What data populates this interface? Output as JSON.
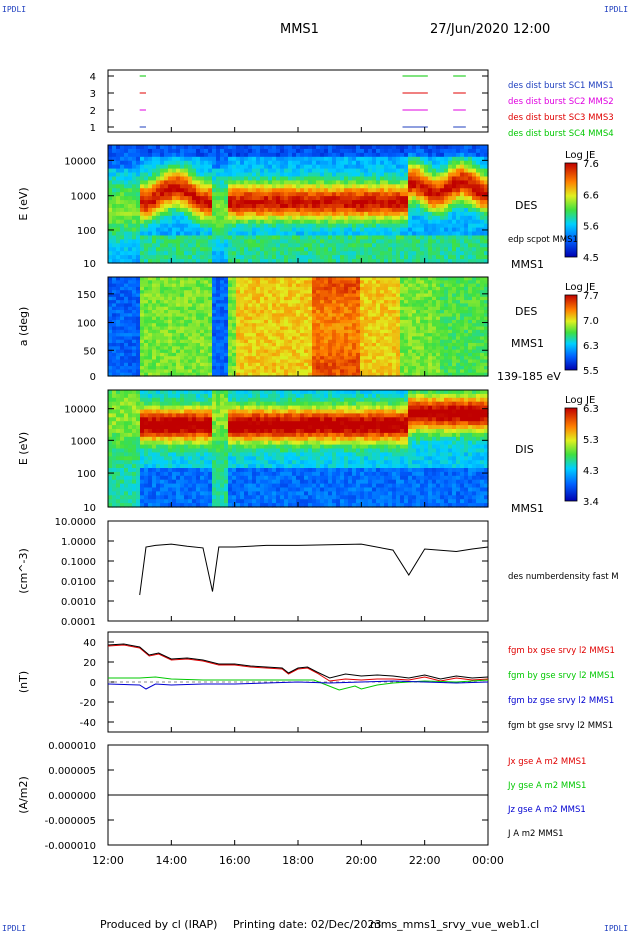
{
  "corner_labels": [
    "IPDLI",
    "IPDLI",
    "IPDLI",
    "IPDLI"
  ],
  "header": {
    "spacecraft": "MMS1",
    "datetime": "27/Jun/2020 12:00"
  },
  "footer": {
    "produced_by": "Produced by cl (IRAP)",
    "printing_date": "Printing date: 02/Dec/2023",
    "product": "mms_mms1_srvy_vue_web1.cl"
  },
  "colors": {
    "red": "#e00000",
    "green": "#00c800",
    "blue": "#0000d0",
    "magenta": "#e000e0",
    "black": "#000000",
    "legend_blue": "#1f3fbf"
  },
  "chart_data": [
    {
      "type": "scatter",
      "panel": "burst-availability",
      "yticks": [
        "4",
        "3",
        "2",
        "1"
      ],
      "legend": [
        {
          "name": "des dist burst SC1 MMS1",
          "color": "#1f3fbf"
        },
        {
          "name": "des dist burst SC2 MMS2",
          "color": "#e000e0"
        },
        {
          "name": "des dist burst SC3 MMS3",
          "color": "#e00000"
        },
        {
          "name": "des dist burst SC4 MMS4",
          "color": "#00c800"
        }
      ],
      "intervals_hours": [
        [
          13.0,
          13.2
        ],
        [
          21.3,
          22.1
        ],
        [
          22.9,
          23.3
        ]
      ]
    },
    {
      "type": "heatmap",
      "panel": "des-energy",
      "ylabel": "E (eV)",
      "yticks": [
        "10000",
        "1000",
        "100",
        "10"
      ],
      "ylim": [
        10,
        30000
      ],
      "yscale": "log",
      "instrument": "DES",
      "spacecraft": "MMS1",
      "overlay": "edp scpot MMS1",
      "colorbar": {
        "title": "Log JE",
        "ticks": [
          "7.6",
          "6.6",
          "5.6",
          "4.5"
        ],
        "range": [
          4.5,
          7.6
        ]
      }
    },
    {
      "type": "heatmap",
      "panel": "des-pitch-angle",
      "ylabel": "a (deg)",
      "yticks": [
        "150",
        "100",
        "50",
        "0"
      ],
      "ylim": [
        0,
        180
      ],
      "instrument": "DES",
      "spacecraft": "MMS1",
      "energy_range": "139-185 eV",
      "colorbar": {
        "title": "Log JE",
        "ticks": [
          "7.7",
          "7.0",
          "6.3",
          "5.5"
        ],
        "range": [
          5.5,
          7.7
        ]
      }
    },
    {
      "type": "heatmap",
      "panel": "dis-energy",
      "ylabel": "E (eV)",
      "yticks": [
        "10000",
        "1000",
        "100",
        "10"
      ],
      "ylim": [
        10,
        30000
      ],
      "yscale": "log",
      "instrument": "DIS",
      "spacecraft": "MMS1",
      "colorbar": {
        "title": "Log JE",
        "ticks": [
          "6.3",
          "5.3",
          "4.3",
          "3.4"
        ],
        "range": [
          3.4,
          6.3
        ]
      }
    },
    {
      "type": "line",
      "panel": "density",
      "ylabel": "(cm^-3)",
      "yticks": [
        "10.0000",
        "1.0000",
        "0.1000",
        "0.0100",
        "0.0010",
        "0.0001"
      ],
      "ylim": [
        0.0001,
        10
      ],
      "yscale": "log",
      "series": [
        {
          "name": "des numberdensity fast M",
          "color": "#000000",
          "x": [
            13.0,
            13.2,
            13.5,
            14.0,
            14.5,
            15.0,
            15.3,
            15.5,
            16.0,
            17.0,
            18.0,
            19.0,
            20.0,
            21.0,
            21.5,
            22.0,
            23.0,
            23.5,
            24.0
          ],
          "y": [
            0.002,
            0.5,
            0.6,
            0.7,
            0.55,
            0.45,
            0.003,
            0.5,
            0.5,
            0.6,
            0.6,
            0.65,
            0.7,
            0.35,
            0.02,
            0.4,
            0.3,
            0.4,
            0.5
          ]
        }
      ]
    },
    {
      "type": "line",
      "panel": "magnetic-field",
      "ylabel": "(nT)",
      "yticks": [
        "40",
        "20",
        "0",
        "-20",
        "-40"
      ],
      "ylim": [
        -50,
        50
      ],
      "series": [
        {
          "name": "fgm bx gse srvy l2 MMS1",
          "color": "#e00000",
          "x": [
            12.0,
            12.5,
            13.0,
            13.3,
            13.6,
            14.0,
            14.5,
            15.0,
            15.5,
            16.0,
            16.5,
            17.0,
            17.5,
            17.7,
            18.0,
            18.3,
            18.6,
            19.0,
            19.5,
            20.0,
            20.5,
            21.0,
            21.5,
            22.0,
            22.5,
            23.0,
            23.5,
            24.0
          ],
          "y": [
            36,
            37,
            34,
            26,
            28,
            22,
            23,
            21,
            17,
            17,
            15,
            14,
            13,
            8,
            13,
            14,
            9,
            1,
            3,
            2,
            3,
            3,
            2,
            5,
            1,
            4,
            2,
            3
          ]
        },
        {
          "name": "fgm by gse srvy l2 MMS1",
          "color": "#00c800",
          "x": [
            12.0,
            13.0,
            13.5,
            14.0,
            15.0,
            16.0,
            17.0,
            18.0,
            18.5,
            18.9,
            19.3,
            19.8,
            20.0,
            20.5,
            21.0,
            22.0,
            23.0,
            24.0
          ],
          "y": [
            4,
            4,
            5,
            3,
            2,
            2,
            2,
            2,
            2,
            -3,
            -8,
            -4,
            -7,
            -3,
            -1,
            1,
            0,
            2
          ]
        },
        {
          "name": "fgm bz gse srvy l2 MMS1",
          "color": "#0000d0",
          "x": [
            12.0,
            13.0,
            13.2,
            13.5,
            14.0,
            15.0,
            16.0,
            17.0,
            18.0,
            19.0,
            20.0,
            21.0,
            22.0,
            23.0,
            24.0
          ],
          "y": [
            -2,
            -3,
            -7,
            -2,
            -3,
            -2,
            -2,
            -1,
            0,
            -1,
            0,
            1,
            0,
            -1,
            0
          ]
        },
        {
          "name": "fgm bt gse srvy l2 MMS1",
          "color": "#000000",
          "x": [
            12.0,
            12.5,
            13.0,
            13.3,
            13.6,
            14.0,
            14.5,
            15.0,
            15.5,
            16.0,
            16.5,
            17.0,
            17.5,
            17.7,
            18.0,
            18.3,
            18.6,
            19.0,
            19.5,
            20.0,
            20.5,
            21.0,
            21.5,
            22.0,
            22.5,
            23.0,
            23.5,
            24.0
          ],
          "y": [
            37,
            38,
            35,
            27,
            29,
            23,
            24,
            22,
            18,
            18,
            16,
            15,
            14,
            9,
            14,
            15,
            10,
            4,
            8,
            6,
            7,
            6,
            4,
            7,
            3,
            6,
            4,
            5
          ]
        }
      ]
    },
    {
      "type": "line",
      "panel": "current-density",
      "ylabel": "(A/m2)",
      "yticks": [
        "0.000010",
        "0.000005",
        "0.000000",
        "-0.000005",
        "-0.000010"
      ],
      "ylim": [
        -1e-05,
        1e-05
      ],
      "xlabel_ticks": [
        "12:00",
        "14:00",
        "16:00",
        "18:00",
        "20:00",
        "22:00",
        "00:00"
      ],
      "series": [
        {
          "name": "Jx gse A m2 MMS1",
          "color": "#e00000",
          "x": [
            12,
            24
          ],
          "y": [
            0,
            0
          ]
        },
        {
          "name": "Jy gse A m2 MMS1",
          "color": "#00c800",
          "x": [
            12,
            24
          ],
          "y": [
            0,
            0
          ]
        },
        {
          "name": "Jz gse A m2 MMS1",
          "color": "#0000d0",
          "x": [
            12,
            24
          ],
          "y": [
            0,
            0
          ]
        },
        {
          "name": "J A m2 MMS1",
          "color": "#000000",
          "x": [
            12,
            24
          ],
          "y": [
            0,
            0
          ]
        }
      ]
    }
  ]
}
